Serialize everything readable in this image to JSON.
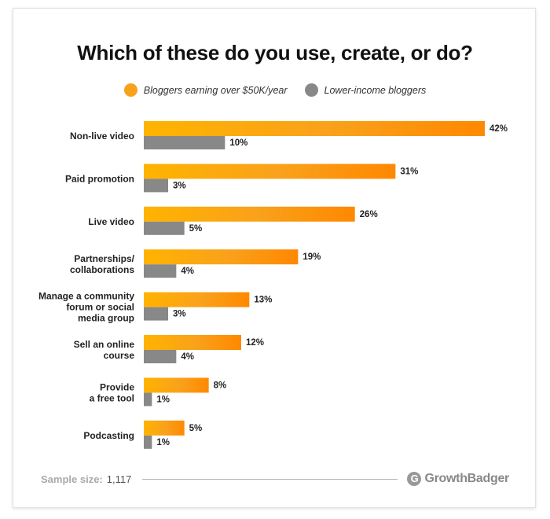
{
  "colors": {
    "high": "#f7a21b",
    "high_end": "#ff8a00",
    "low": "#888888"
  },
  "chart_data": {
    "type": "bar",
    "orientation": "horizontal",
    "title": "Which of these do you use, create, or do?",
    "categories": [
      [
        "Non-live video"
      ],
      [
        "Paid promotion"
      ],
      [
        "Live video"
      ],
      [
        "Partnerships/",
        "collaborations"
      ],
      [
        "Manage a community",
        "forum or social",
        "media group"
      ],
      [
        "Sell an online",
        "course"
      ],
      [
        "Provide",
        "a free tool"
      ],
      [
        "Podcasting"
      ]
    ],
    "series": [
      {
        "name": "Bloggers earning over $50K/year",
        "values": [
          42,
          31,
          26,
          19,
          13,
          12,
          8,
          5
        ]
      },
      {
        "name": "Lower-income bloggers",
        "values": [
          10,
          3,
          5,
          4,
          3,
          4,
          1,
          1
        ]
      }
    ],
    "value_suffix": "%",
    "xlim": [
      0,
      42
    ],
    "legend_position": "top-center"
  },
  "footer": {
    "sample_label": "Sample size:",
    "sample_value": "1,117",
    "brand": "GrowthBadger",
    "brand_icon": "growthbadger-logo-icon"
  }
}
